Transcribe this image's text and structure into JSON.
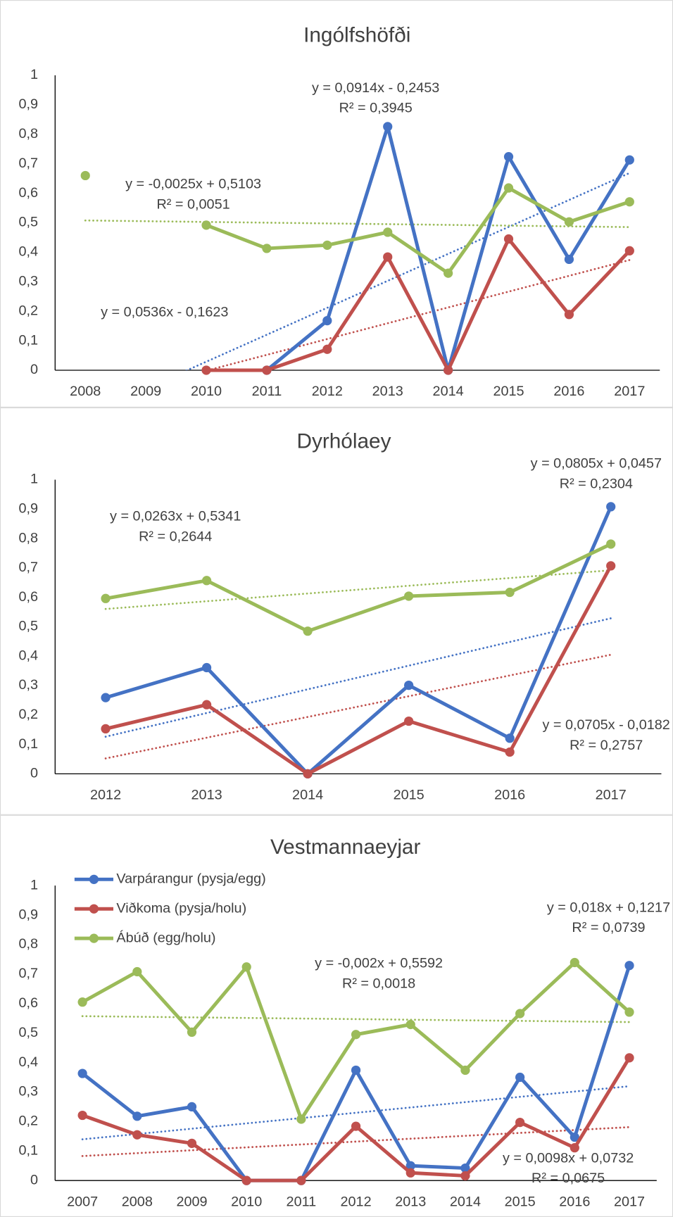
{
  "chart_data": [
    {
      "type": "line",
      "title": "Ingólfshöfði",
      "categories": [
        "2008",
        "2009",
        "2010",
        "2011",
        "2012",
        "2013",
        "2014",
        "2015",
        "2016",
        "2017"
      ],
      "ylim": [
        0,
        1
      ],
      "yticks": [
        0,
        {
          "value": 0.1,
          "label": "0,1"
        },
        {
          "value": 0.2,
          "label": "0,2"
        },
        {
          "value": 0.3,
          "label": "0,3"
        },
        {
          "value": 0.4,
          "label": "0,4"
        },
        {
          "value": 0.5,
          "label": "0,5"
        },
        {
          "value": 0.6,
          "label": "0,6"
        },
        {
          "value": 0.7,
          "label": "0,7"
        },
        {
          "value": 0.8,
          "label": "0,8"
        },
        {
          "value": 0.9,
          "label": "0,9"
        },
        1
      ],
      "grid": false,
      "series": [
        {
          "color": "#4472c4",
          "values": [
            null,
            null,
            null,
            0,
            0.168,
            0.826,
            0,
            0.724,
            0.376,
            0.713
          ],
          "trendline": {
            "slope": 0.0914,
            "intercept": -0.2453,
            "equation": "y = 0,0914x - 0,2453",
            "r2": "R² = 0,3945"
          }
        },
        {
          "color": "#c0504d",
          "values": [
            null,
            null,
            0,
            0,
            0.071,
            0.384,
            0,
            0.445,
            0.189,
            0.405
          ],
          "trendline": {
            "slope": 0.0536,
            "intercept": -0.1623,
            "equation": "y = 0,0536x - 0,1623"
          }
        },
        {
          "color": "#9bbb59",
          "values": [
            0.66,
            null,
            0.492,
            0.413,
            0.424,
            0.468,
            0.329,
            0.618,
            0.503,
            0.571
          ],
          "trendline": {
            "slope": -0.0025,
            "intercept": 0.5103,
            "equation": "y = -0,0025x + 0,5103",
            "r2": "R² = 0,0051"
          }
        }
      ]
    },
    {
      "type": "line",
      "title": "Dyrhólaey",
      "categories": [
        "2012",
        "2013",
        "2014",
        "2015",
        "2016",
        "2017"
      ],
      "ylim": [
        0,
        1
      ],
      "yticks": [
        0,
        {
          "value": 0.1,
          "label": "0,1"
        },
        {
          "value": 0.2,
          "label": "0,2"
        },
        {
          "value": 0.3,
          "label": "0,3"
        },
        {
          "value": 0.4,
          "label": "0,4"
        },
        {
          "value": 0.5,
          "label": "0,5"
        },
        {
          "value": 0.6,
          "label": "0,6"
        },
        {
          "value": 0.7,
          "label": "0,7"
        },
        {
          "value": 0.8,
          "label": "0,8"
        },
        {
          "value": 0.9,
          "label": "0,9"
        },
        1
      ],
      "grid": false,
      "series": [
        {
          "color": "#4472c4",
          "values": [
            0.259,
            0.361,
            0,
            0.301,
            0.121,
            0.908
          ],
          "trendline": {
            "slope": 0.0805,
            "intercept": 0.0457,
            "equation": "y = 0,0805x + 0,0457",
            "r2": "R² = 0,2304"
          }
        },
        {
          "color": "#c0504d",
          "values": [
            0.153,
            0.235,
            0,
            0.179,
            0.074,
            0.707
          ],
          "trendline": {
            "slope": 0.0705,
            "intercept": -0.0182,
            "equation": "y = 0,0705x - 0,0182",
            "r2": "R² = 0,2757"
          }
        },
        {
          "color": "#9bbb59",
          "values": [
            0.596,
            0.657,
            0.485,
            0.604,
            0.617,
            0.781
          ],
          "trendline": {
            "slope": 0.0263,
            "intercept": 0.5341,
            "equation": "y = 0,0263x + 0,5341",
            "r2": "R² = 0,2644"
          }
        }
      ]
    },
    {
      "type": "line",
      "title": "Vestmannaeyjar",
      "categories": [
        "2007",
        "2008",
        "2009",
        "2010",
        "2011",
        "2012",
        "2013",
        "2014",
        "2015",
        "2016",
        "2017"
      ],
      "ylim": [
        0,
        1
      ],
      "yticks": [
        0,
        {
          "value": 0.1,
          "label": "0,1"
        },
        {
          "value": 0.2,
          "label": "0,2"
        },
        {
          "value": 0.3,
          "label": "0,3"
        },
        {
          "value": 0.4,
          "label": "0,4"
        },
        {
          "value": 0.5,
          "label": "0,5"
        },
        {
          "value": 0.6,
          "label": "0,6"
        },
        {
          "value": 0.7,
          "label": "0,7"
        },
        {
          "value": 0.8,
          "label": "0,8"
        },
        {
          "value": 0.9,
          "label": "0,9"
        },
        1
      ],
      "grid": false,
      "legend": "top-left",
      "series": [
        {
          "name": "Varpárangur (pysja/egg)",
          "color": "#4472c4",
          "values": [
            0.363,
            0.218,
            0.25,
            0,
            0,
            0.374,
            0.05,
            0.042,
            0.35,
            0.147,
            0.729
          ],
          "trendline": {
            "slope": 0.018,
            "intercept": 0.1217,
            "equation": "y = 0,018x + 0,1217",
            "r2": "R² = 0,0739"
          }
        },
        {
          "name": "Viðkoma (pysja/holu)",
          "color": "#c0504d",
          "values": [
            0.221,
            0.155,
            0.126,
            0,
            0,
            0.184,
            0.026,
            0.016,
            0.197,
            0.111,
            0.416
          ],
          "trendline": {
            "slope": 0.0098,
            "intercept": 0.0732,
            "equation": "y = 0,0098x + 0,0732",
            "r2": "R² = 0,0675"
          }
        },
        {
          "name": "Ábúð (egg/holu)",
          "color": "#9bbb59",
          "values": [
            0.605,
            0.708,
            0.503,
            0.724,
            0.208,
            0.495,
            0.529,
            0.374,
            0.566,
            0.739,
            0.571
          ],
          "trendline": {
            "slope": -0.002,
            "intercept": 0.5592,
            "equation": "y = -0,002x + 0,5592",
            "r2": "R² = 0,0018"
          }
        }
      ]
    }
  ]
}
